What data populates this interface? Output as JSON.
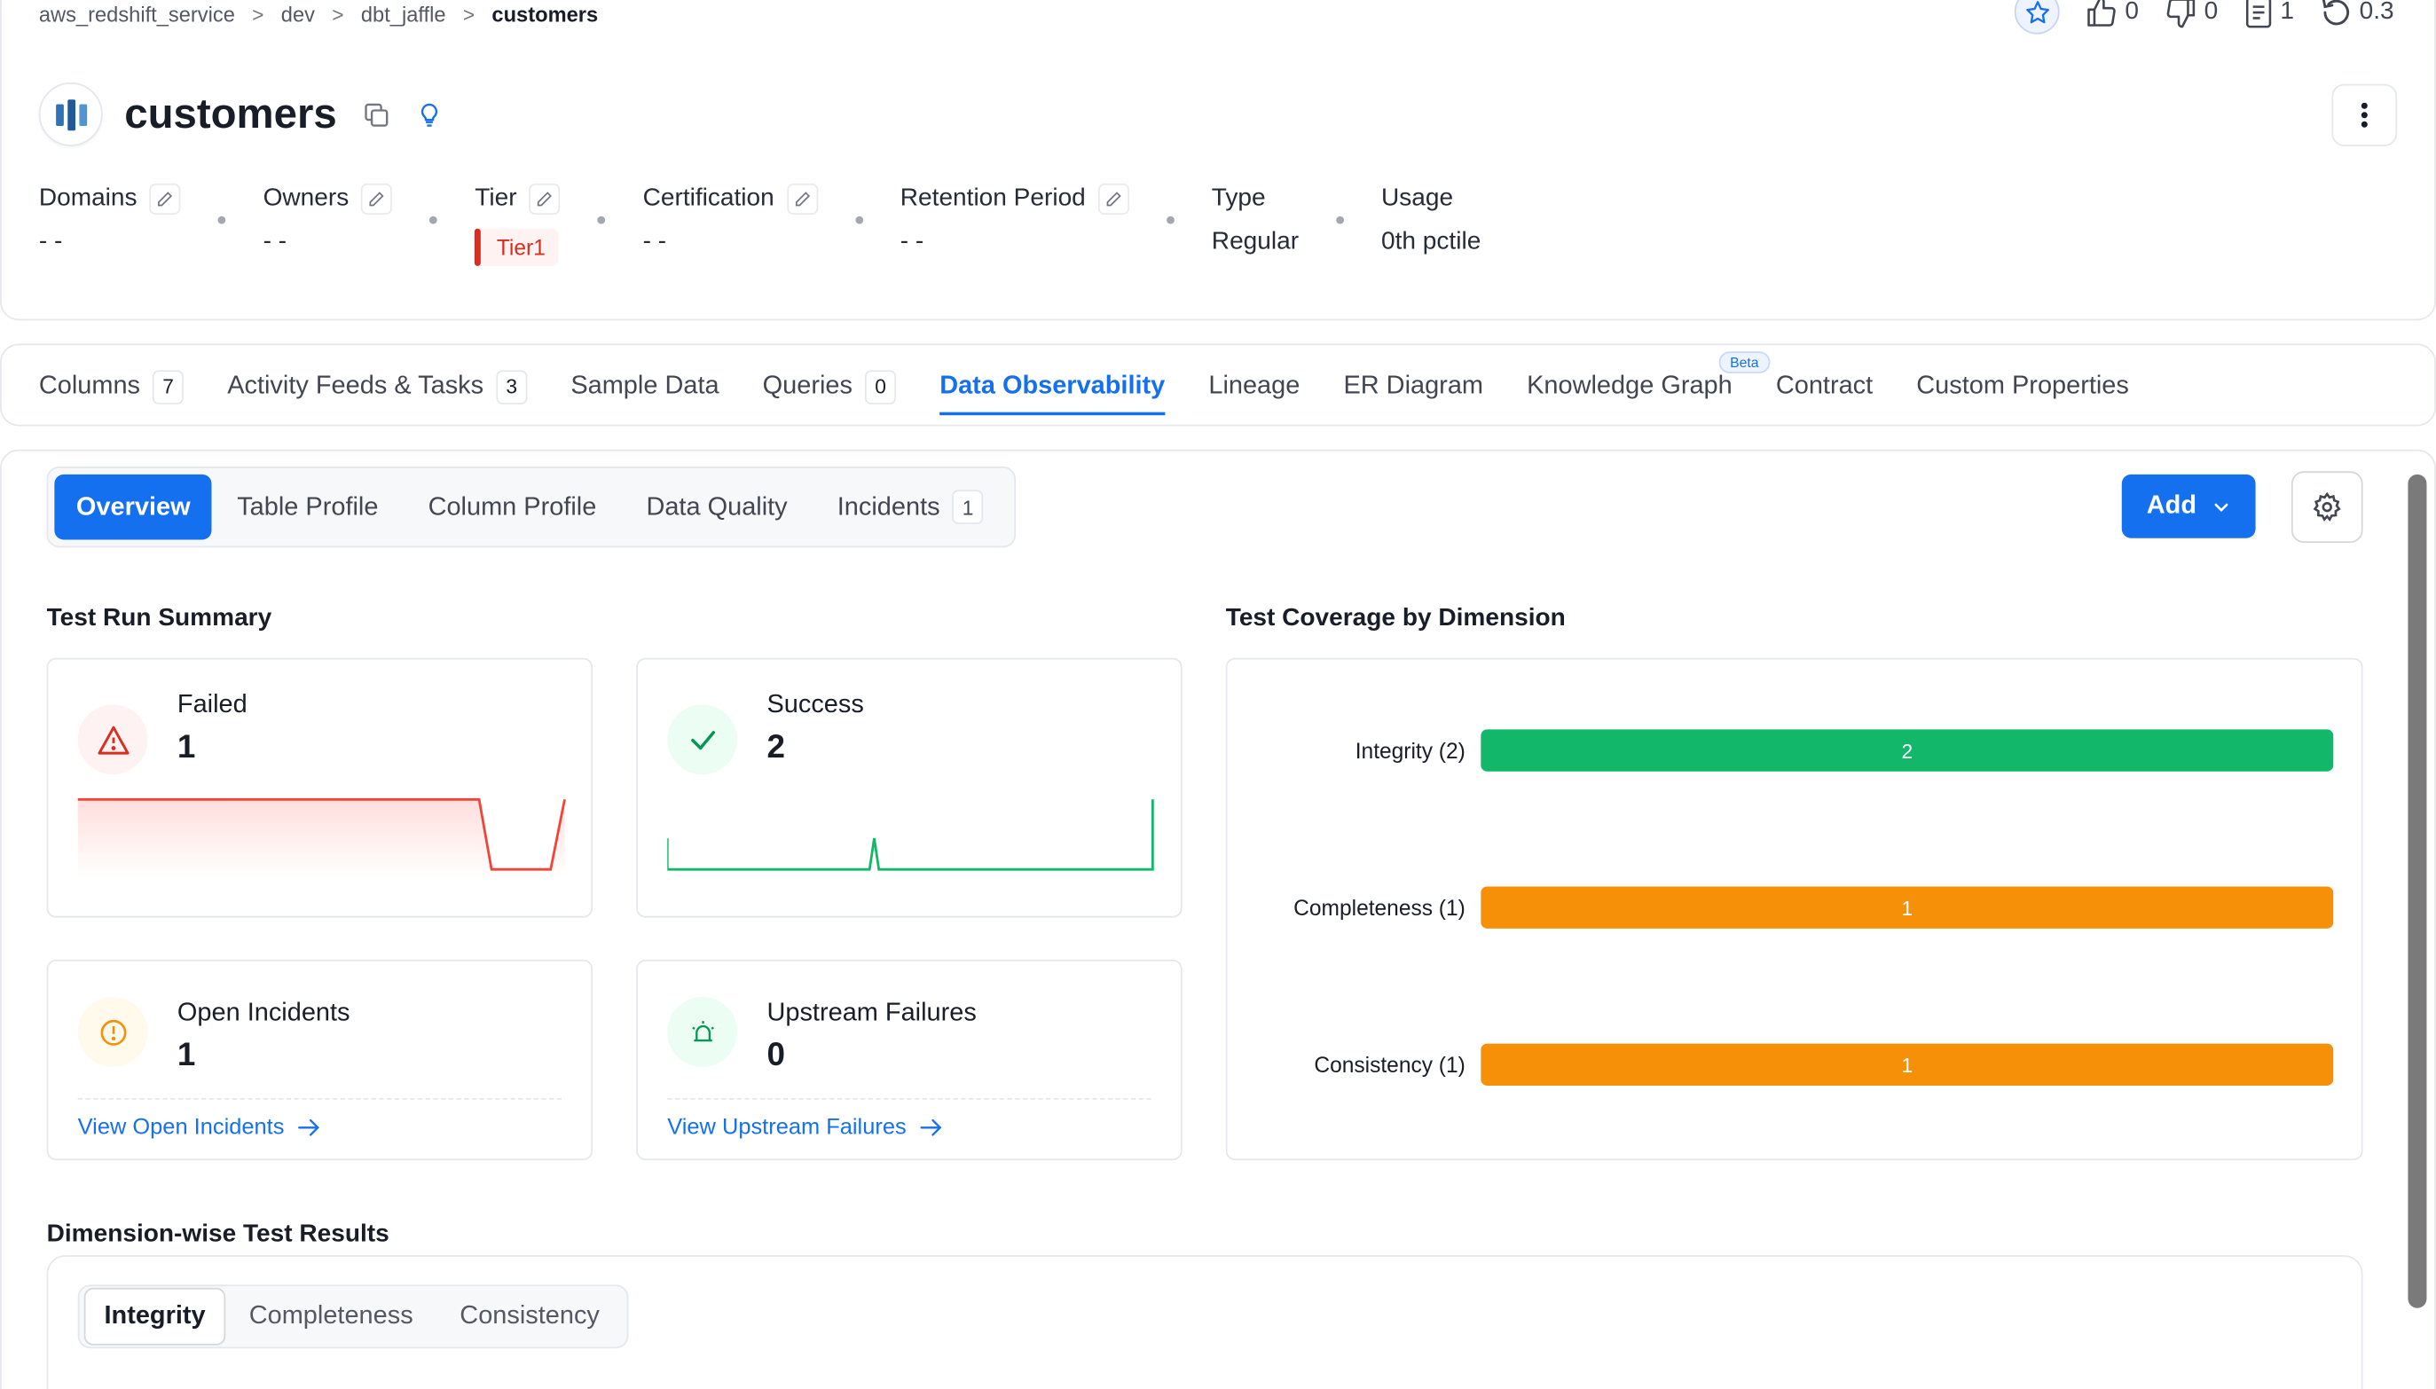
{
  "breadcrumb": {
    "items": [
      "aws_redshift_service",
      "dev",
      "dbt_jaffle"
    ],
    "current": "customers"
  },
  "top_actions": {
    "likes": "0",
    "dislikes": "0",
    "docs": "1",
    "version": "0.3"
  },
  "entity": {
    "title": "customers"
  },
  "properties": {
    "domains": {
      "label": "Domains",
      "value": "- -"
    },
    "owners": {
      "label": "Owners",
      "value": "- -"
    },
    "tier": {
      "label": "Tier",
      "value": "Tier1"
    },
    "certification": {
      "label": "Certification",
      "value": "- -"
    },
    "retention": {
      "label": "Retention Period",
      "value": "- -"
    },
    "type": {
      "label": "Type",
      "value": "Regular"
    },
    "usage": {
      "label": "Usage",
      "value": "0th pctile"
    }
  },
  "tabs": [
    {
      "label": "Columns",
      "count": "7"
    },
    {
      "label": "Activity Feeds & Tasks",
      "count": "3"
    },
    {
      "label": "Sample Data"
    },
    {
      "label": "Queries",
      "count": "0"
    },
    {
      "label": "Data Observability",
      "active": true
    },
    {
      "label": "Lineage"
    },
    {
      "label": "ER Diagram"
    },
    {
      "label": "Knowledge Graph",
      "badge": "Beta"
    },
    {
      "label": "Contract"
    },
    {
      "label": "Custom Properties"
    }
  ],
  "subtabs": [
    {
      "label": "Overview",
      "active": true
    },
    {
      "label": "Table Profile"
    },
    {
      "label": "Column Profile"
    },
    {
      "label": "Data Quality"
    },
    {
      "label": "Incidents",
      "count": "1"
    }
  ],
  "actions": {
    "add_label": "Add"
  },
  "summary": {
    "title": "Test Run Summary",
    "failed": {
      "label": "Failed",
      "value": "1"
    },
    "success": {
      "label": "Success",
      "value": "2"
    },
    "open_incidents": {
      "label": "Open Incidents",
      "value": "1",
      "link": "View Open Incidents"
    },
    "upstream": {
      "label": "Upstream Failures",
      "value": "0",
      "link": "View Upstream Failures"
    }
  },
  "coverage": {
    "title": "Test Coverage by Dimension"
  },
  "chart_data": {
    "type": "bar",
    "orientation": "horizontal",
    "categories": [
      "Integrity (2)",
      "Completeness (1)",
      "Consistency (1)"
    ],
    "values": [
      2,
      1,
      1
    ],
    "colors": [
      "#12b76a",
      "#f79009",
      "#f79009"
    ],
    "grid": false
  },
  "dimension_results": {
    "title": "Dimension-wise Test Results",
    "tabs": [
      {
        "label": "Integrity",
        "active": true
      },
      {
        "label": "Completeness"
      },
      {
        "label": "Consistency"
      }
    ]
  },
  "colors": {
    "primary": "#1570ef",
    "failed": "#d92d20",
    "success": "#12b76a",
    "warning": "#f79009"
  }
}
